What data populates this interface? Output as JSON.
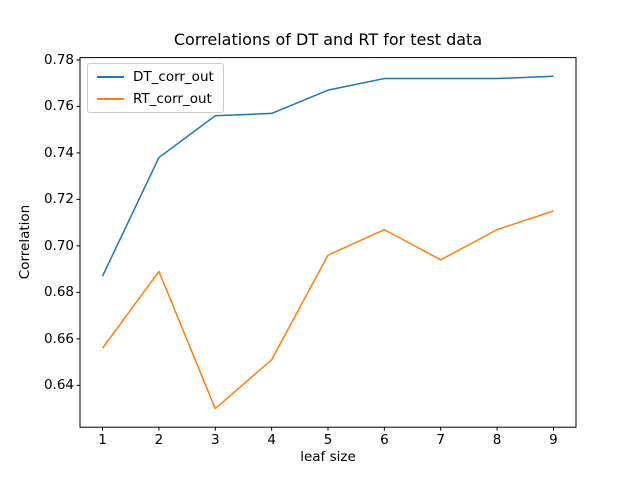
{
  "chart_data": {
    "type": "line",
    "title": "Correlations of DT and RT for test data",
    "xlabel": "leaf size",
    "ylabel": "Correlation",
    "x": [
      1,
      2,
      3,
      4,
      5,
      6,
      7,
      8,
      9
    ],
    "series": [
      {
        "name": "DT_corr_out",
        "color": "#1f77b4",
        "values": [
          0.687,
          0.738,
          0.756,
          0.757,
          0.767,
          0.772,
          0.772,
          0.772,
          0.773
        ]
      },
      {
        "name": "RT_corr_out",
        "color": "#ff7f0e",
        "values": [
          0.656,
          0.689,
          0.63,
          0.651,
          0.696,
          0.707,
          0.694,
          0.707,
          0.715
        ]
      }
    ],
    "xlim": [
      0.6,
      9.4
    ],
    "ylim": [
      0.622,
      0.781
    ],
    "xticks": [
      1,
      2,
      3,
      4,
      5,
      6,
      7,
      8,
      9
    ],
    "xtick_labels": [
      "1",
      "2",
      "3",
      "4",
      "5",
      "6",
      "7",
      "8",
      "9"
    ],
    "yticks": [
      0.64,
      0.66,
      0.68,
      0.7,
      0.72,
      0.74,
      0.76,
      0.78
    ],
    "ytick_labels": [
      "0.64",
      "0.66",
      "0.68",
      "0.70",
      "0.72",
      "0.74",
      "0.76",
      "0.78"
    ],
    "grid": false,
    "legend_position": "upper left",
    "line_width": 1.5
  },
  "colors": {
    "background": "#ffffff",
    "axis": "#000000",
    "text": "#000000",
    "legend_border": "#cccccc"
  }
}
